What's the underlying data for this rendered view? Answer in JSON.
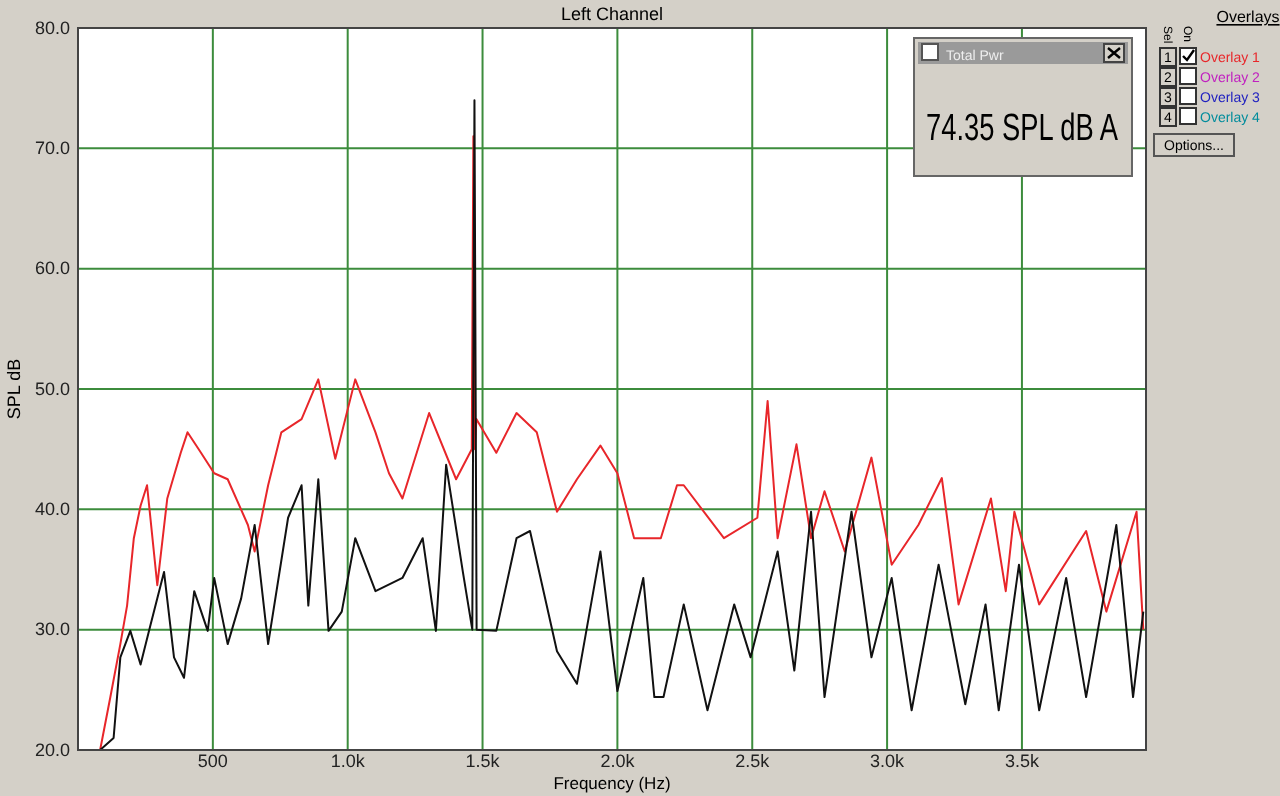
{
  "chart_data": {
    "type": "line",
    "title": "Left Channel",
    "xlabel": "Frequency (Hz)",
    "ylabel": "SPL dB",
    "legend_title": "Overlays",
    "legend": "right",
    "grid": true,
    "line_style": "solid",
    "marker": "none",
    "xlim": [
      0,
      3960
    ],
    "ylim": [
      20,
      80
    ],
    "xticks": [
      500,
      {
        "value": 1000,
        "label": "1.0k"
      },
      {
        "value": 1500,
        "label": "1.5k"
      },
      {
        "value": 2000,
        "label": "2.0k"
      },
      {
        "value": 2500,
        "label": "2.5k"
      },
      {
        "value": 3000,
        "label": "3.0k"
      },
      {
        "value": 3500,
        "label": "3.5k"
      }
    ],
    "yticks": [
      {
        "value": 20,
        "label": "20.0"
      },
      {
        "value": 30,
        "label": "30.0"
      },
      {
        "value": 40,
        "label": "40.0"
      },
      {
        "value": 50,
        "label": "50.0"
      },
      {
        "value": 60,
        "label": "60.0"
      },
      {
        "value": 70,
        "label": "70.0"
      },
      {
        "value": 80,
        "label": "80.0"
      }
    ],
    "annotations": [
      "Total Pwr",
      "74.35 SPL dB A",
      "Sel",
      "On",
      "1",
      "2",
      "3",
      "4",
      "Overlay 2",
      "Overlay 3",
      "Overlay 4",
      "Options..."
    ],
    "series": [
      {
        "name": "Overlay 1",
        "color": "#e8262a",
        "x": [
          0,
          82,
          120,
          157,
          182,
          207,
          232,
          256,
          294,
          331,
          381,
          406,
          456,
          505,
          555,
          630,
          655,
          705,
          754,
          829,
          891,
          954,
          1028,
          1103,
          1153,
          1203,
          1302,
          1402,
          1460,
          1466,
          1472,
          1477,
          1551,
          1626,
          1701,
          1776,
          1850,
          1937,
          2000,
          2062,
          2096,
          2161,
          2221,
          2246,
          2395,
          2519,
          2557,
          2594,
          2664,
          2718,
          2768,
          2843,
          2942,
          3017,
          3116,
          3203,
          3265,
          3385,
          3440,
          3472,
          3564,
          3738,
          3813,
          3925,
          3950
        ],
        "values": [
          20,
          20,
          24.4,
          28.8,
          32,
          37.6,
          40.3,
          42,
          33.7,
          40.9,
          44.7,
          46.4,
          44.7,
          43,
          42.5,
          38.7,
          36.5,
          42,
          46.4,
          47.5,
          50.8,
          44.2,
          50.8,
          46.4,
          43,
          40.9,
          48,
          42.5,
          45,
          71,
          45,
          47.5,
          44.7,
          48,
          46.4,
          39.8,
          42.5,
          45.3,
          43,
          37.6,
          37.6,
          37.6,
          42,
          42,
          37.6,
          39.3,
          49,
          37.6,
          45.4,
          37.6,
          41.5,
          36.5,
          44.3,
          35.4,
          38.7,
          42.6,
          32.1,
          40.9,
          33.2,
          39.8,
          32.1,
          38.2,
          31.5,
          39.8,
          30
        ]
      },
      {
        "color": "#111111",
        "x": [
          0,
          82,
          132,
          157,
          194,
          232,
          269,
          319,
          356,
          393,
          431,
          481,
          505,
          555,
          605,
          655,
          705,
          779,
          829,
          854,
          891,
          929,
          978,
          1028,
          1103,
          1203,
          1278,
          1327,
          1365,
          1427,
          1462,
          1470,
          1478,
          1551,
          1626,
          1676,
          1776,
          1850,
          1937,
          2000,
          2096,
          2137,
          2171,
          2246,
          2334,
          2433,
          2494,
          2594,
          2656,
          2718,
          2768,
          2868,
          2942,
          3017,
          3091,
          3191,
          3290,
          3365,
          3414,
          3489,
          3564,
          3664,
          3738,
          3850,
          3912,
          3950
        ],
        "values": [
          20,
          20,
          21,
          27.7,
          29.9,
          27.1,
          30.4,
          34.8,
          27.7,
          26,
          33.2,
          29.9,
          34.3,
          28.8,
          32.6,
          38.7,
          28.8,
          39.3,
          42,
          32,
          42.5,
          29.9,
          31.5,
          37.6,
          33.2,
          34.3,
          37.6,
          29.9,
          43.7,
          34.8,
          30,
          74,
          30,
          29.9,
          37.6,
          38.2,
          28.2,
          25.5,
          36.5,
          24.9,
          34.3,
          24.4,
          24.4,
          32.1,
          23.3,
          32.1,
          27.7,
          36.5,
          26.6,
          39.8,
          24.4,
          39.8,
          27.7,
          34.3,
          23.3,
          35.4,
          23.8,
          32.1,
          23.3,
          35.4,
          23.3,
          34.3,
          24.4,
          38.7,
          24.4,
          31.5
        ]
      }
    ]
  }
}
